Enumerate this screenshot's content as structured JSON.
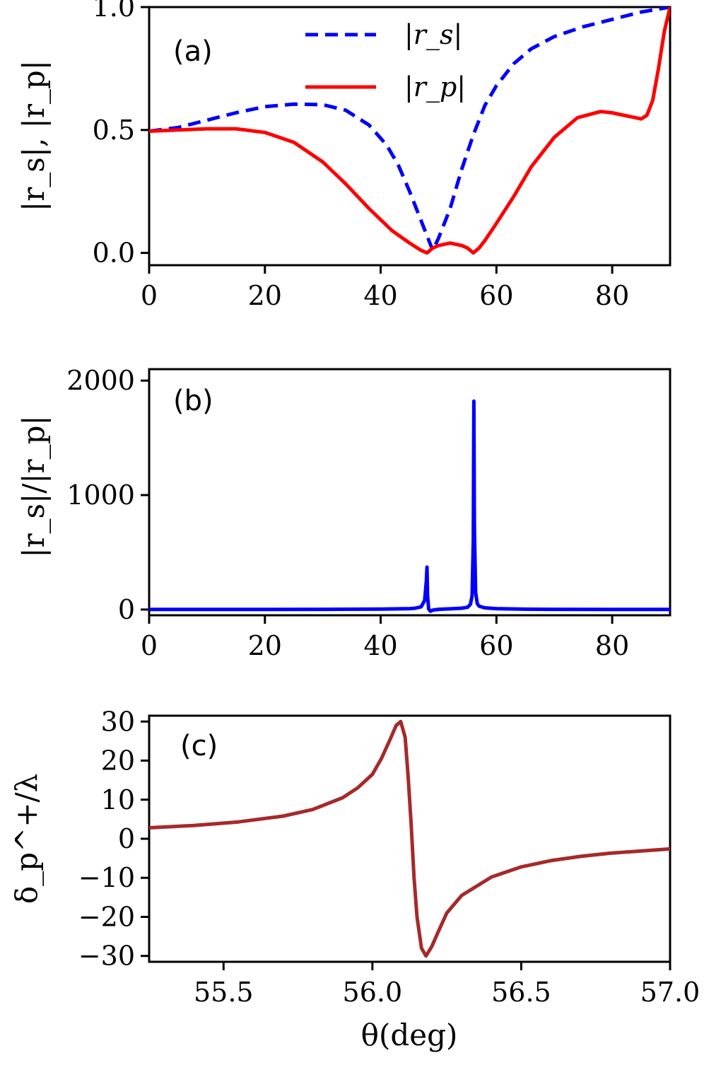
{
  "chart_data": [
    {
      "panel_label": "(a)",
      "type": "line",
      "ylabel": "|r_s|, |r_p|",
      "xlabel": "",
      "xlim": [
        0,
        90
      ],
      "ylim": [
        -0.05,
        1.0
      ],
      "xticks": [
        0,
        20,
        40,
        60,
        80
      ],
      "xtick_labels": [
        "0",
        "20",
        "40",
        "60",
        "80"
      ],
      "yticks": [
        0.0,
        0.5,
        1.0
      ],
      "ytick_labels": [
        "0.0",
        "0.5",
        "1.0"
      ],
      "legend": {
        "position": "top-center",
        "entries": [
          "|r_s|",
          "|r_p|"
        ]
      },
      "series": [
        {
          "name": "|r_s|",
          "color": "#0000ff",
          "style": "dashed",
          "x": [
            0,
            5,
            10,
            15,
            20,
            25,
            30,
            34,
            38,
            41,
            43,
            45,
            46,
            47,
            48,
            49,
            50,
            52,
            54,
            56,
            58,
            60,
            63,
            66,
            70,
            75,
            80,
            85,
            90
          ],
          "y": [
            0.495,
            0.51,
            0.54,
            0.57,
            0.595,
            0.605,
            0.603,
            0.58,
            0.52,
            0.44,
            0.36,
            0.25,
            0.19,
            0.13,
            0.07,
            0.01,
            0.06,
            0.18,
            0.34,
            0.48,
            0.6,
            0.68,
            0.77,
            0.83,
            0.88,
            0.92,
            0.95,
            0.98,
            1.0
          ]
        },
        {
          "name": "|r_p|",
          "color": "#ff0000",
          "style": "solid",
          "x": [
            0,
            5,
            10,
            15,
            20,
            25,
            30,
            34,
            38,
            42,
            45,
            47,
            48,
            49,
            50,
            52,
            54,
            55,
            56,
            57,
            58,
            60,
            63,
            66,
            70,
            74,
            78,
            80,
            82,
            84,
            85,
            86,
            87,
            88,
            89,
            90
          ],
          "y": [
            0.495,
            0.5,
            0.505,
            0.505,
            0.49,
            0.45,
            0.37,
            0.28,
            0.18,
            0.09,
            0.04,
            0.01,
            0.0,
            0.02,
            0.03,
            0.04,
            0.03,
            0.02,
            0.0,
            0.02,
            0.05,
            0.12,
            0.23,
            0.35,
            0.47,
            0.55,
            0.575,
            0.57,
            0.56,
            0.55,
            0.545,
            0.56,
            0.62,
            0.75,
            0.9,
            1.0
          ]
        }
      ]
    },
    {
      "panel_label": "(b)",
      "type": "line",
      "ylabel": "|r_s|/|r_p|",
      "xlabel": "",
      "xlim": [
        0,
        90
      ],
      "ylim": [
        -50,
        2100
      ],
      "xticks": [
        0,
        20,
        40,
        60,
        80
      ],
      "xtick_labels": [
        "0",
        "20",
        "40",
        "60",
        "80"
      ],
      "yticks": [
        0,
        1000,
        2000
      ],
      "ytick_labels": [
        "0",
        "1000",
        "2000"
      ],
      "series": [
        {
          "name": "|r_s|/|r_p|",
          "color": "#0000ff",
          "style": "solid",
          "x": [
            0,
            10,
            20,
            30,
            40,
            45,
            46,
            47,
            47.6,
            47.9,
            48.0,
            48.1,
            48.3,
            48.6,
            49,
            50,
            52,
            54,
            55,
            55.5,
            55.8,
            56.0,
            56.1,
            56.2,
            56.4,
            56.7,
            57,
            58,
            60,
            65,
            70,
            80,
            90
          ],
          "y": [
            1,
            1,
            1,
            2,
            4,
            8,
            12,
            25,
            80,
            250,
            370,
            120,
            5,
            -15,
            -5,
            2,
            6,
            12,
            20,
            45,
            120,
            600,
            1820,
            700,
            150,
            50,
            30,
            15,
            8,
            3,
            2,
            1,
            1
          ]
        }
      ]
    },
    {
      "panel_label": "(c)",
      "type": "line",
      "ylabel": "δ_p^+/λ",
      "xlabel": "θ(deg)",
      "xlim": [
        55.25,
        57.0
      ],
      "ylim": [
        -31.5,
        31.5
      ],
      "xticks": [
        55.5,
        56.0,
        56.5,
        57.0
      ],
      "xtick_labels": [
        "55.5",
        "56.0",
        "56.5",
        "57.0"
      ],
      "yticks": [
        -30,
        -20,
        -10,
        0,
        10,
        20,
        30
      ],
      "ytick_labels": [
        "−30",
        "−20",
        "−10",
        "0",
        "10",
        "20",
        "30"
      ],
      "series": [
        {
          "name": "δ_p^+/λ",
          "color": "#a52a2a",
          "style": "solid",
          "x": [
            55.25,
            55.4,
            55.55,
            55.7,
            55.8,
            55.9,
            55.95,
            56.0,
            56.03,
            56.06,
            56.08,
            56.095,
            56.11,
            56.12,
            56.13,
            56.14,
            56.15,
            56.165,
            56.18,
            56.2,
            56.22,
            56.25,
            56.3,
            56.4,
            56.5,
            56.6,
            56.7,
            56.8,
            57.0
          ],
          "y": [
            2.8,
            3.4,
            4.3,
            5.8,
            7.5,
            10.5,
            13.0,
            16.5,
            20.5,
            25.5,
            29.0,
            30.0,
            26.0,
            16.0,
            4.0,
            -10.0,
            -20.0,
            -28.0,
            -30.0,
            -27.5,
            -24.0,
            -19.0,
            -14.5,
            -9.8,
            -7.2,
            -5.6,
            -4.5,
            -3.7,
            -2.6
          ]
        }
      ]
    }
  ]
}
